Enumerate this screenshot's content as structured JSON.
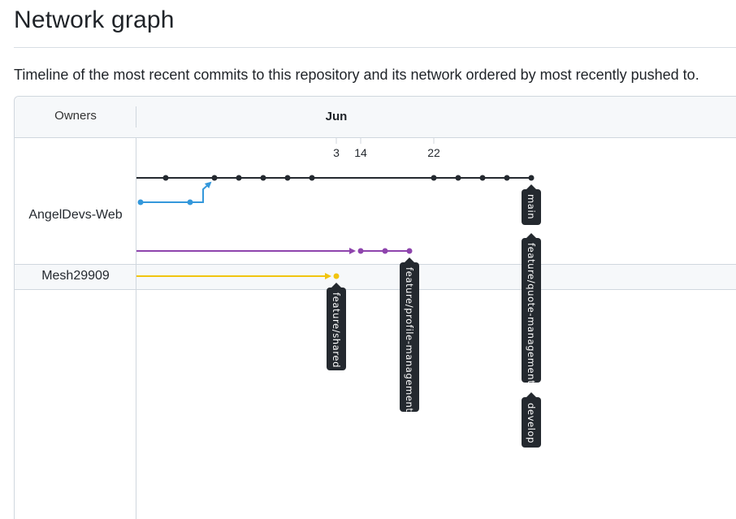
{
  "page": {
    "title": "Network graph",
    "description": "Timeline of the most recent commits to this repository and its network ordered by most recently pushed to."
  },
  "graph": {
    "owners_header": "Owners",
    "month_label": "Jun",
    "day_labels": [
      "3",
      "14",
      "22"
    ],
    "owners": [
      {
        "name": "AngelDevs-Web"
      },
      {
        "name": "Mesh29909"
      }
    ],
    "branches": [
      {
        "name": "main",
        "color": "#24292f"
      },
      {
        "name": "feature/quote-management",
        "color": "#24292f"
      },
      {
        "name": "develop",
        "color": "#24292f"
      },
      {
        "name": "feature/profile-management",
        "color": "#8e44ad"
      },
      {
        "name": "feature/shared",
        "color": "#f1c40f"
      }
    ],
    "colors": {
      "main_line": "#24292f",
      "blue_line": "#3498db",
      "purple_line": "#8e44ad",
      "yellow_line": "#f1c40f",
      "label_bg": "#24292f"
    }
  }
}
